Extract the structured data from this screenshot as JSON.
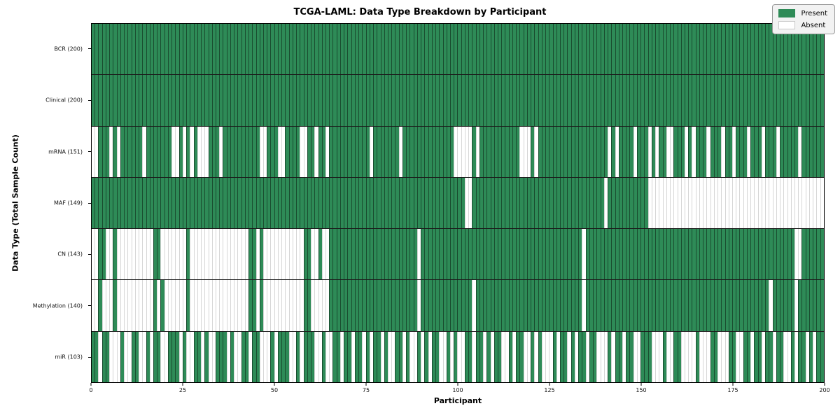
{
  "chart_data": {
    "type": "heatmap",
    "title": "TCGA-LAML: Data Type Breakdown by Participant",
    "xlabel": "Participant",
    "ylabel": "Data Type (Total Sample Count)",
    "x_range": [
      0,
      200
    ],
    "x_ticks": [
      0,
      25,
      50,
      75,
      100,
      125,
      150,
      175,
      200
    ],
    "n_participants": 200,
    "grid": "per-cell vertical separators, horizontal row dividers",
    "legend_position": "upper right",
    "legend": [
      {
        "label": "Present",
        "color": "#2e8b57"
      },
      {
        "label": "Absent",
        "color": "#ffffff"
      }
    ],
    "rows": [
      {
        "label": "BCR (200)",
        "count": 200,
        "pattern": "11111111111111111111111111111111111111111111111111111111111111111111111111111111111111111111111111111111111111111111111111111111111111111111111111111111111111111111111111111111111111111111111111111111"
      },
      {
        "label": "Clinical (200)",
        "count": 200,
        "pattern": "11111111111111111111111111111111111111111111111111111111111111111111111111111111111111111111111111111111111111111111111111111111111111111111111111111111111111111111111111111111111111111111111111111111"
      },
      {
        "label": "mRNA (151)",
        "count": 151,
        "pattern": "00111010111111011111110010101000111011111111110011100111100110110111111111110111111101111111111111100000101111111111100010111111111111111111101011110111010110011101011101110110111011101110111110111111"
      },
      {
        "label": "MAF (149)",
        "count": 149,
        "pattern": "11111111111111111111111111111111111111111111111111111111111111111111111111111111111111111111111111111100111111111111111111111111111111111111011111111111000000000000000000000000000000000000000000000000"
      },
      {
        "label": "CN (143)",
        "count": 143,
        "pattern": "00110010000000000110000000100000000000000001101000000000001100100111111111111111111111111011111111111111111111111111111111111111111111011111111111111111111111111111111111111111111111111111111100111111111"
      },
      {
        "label": "Methylation (140)",
        "count": 140,
        "pattern": "00100010000000000101000000100000000000000001101000000000001100000111111111111111111111111011111111111111011111111111111111111111111111011111111111111111111111111111111111111111111111111011111101111111111"
      },
      {
        "label": "miR (103)",
        "count": 103,
        "pattern": "11011000100110010110011101001101001110100110110001011100101110010011011011010110100110100101011001010011011010110010110010100010110101101100010110110011100010011000010001100011001101101101100101101011"
      }
    ]
  }
}
